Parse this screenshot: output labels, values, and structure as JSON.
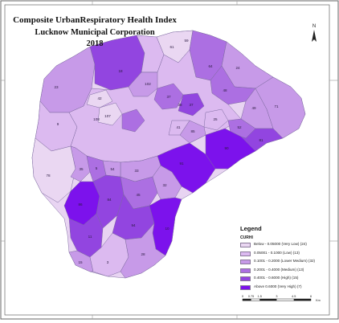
{
  "map": {
    "title_line1": "Composite UrbanRespiratory Health Index",
    "title_line2": "Lucknow Municipal Corporation",
    "title_line3": "2018",
    "north_label": "N"
  },
  "legend": {
    "title": "Legend",
    "subtitle": "CURHI",
    "classes": [
      {
        "label": "Below - 0.05000 (Very Low) (24)",
        "color": "#ead7f2"
      },
      {
        "label": "0.05001 - 0.1000 (Low) (13)",
        "color": "#dcbaf0"
      },
      {
        "label": "0.1001 - 0.2000 (Lower Medium) (32)",
        "color": "#c79ae8"
      },
      {
        "label": "0.2001 - 0.4000 (Medium) (13)",
        "color": "#ac6fe2"
      },
      {
        "label": "0.4001 - 0.6000 (High) (15)",
        "color": "#9245e0"
      },
      {
        "label": "Above 0.6000 (Very High) (7)",
        "color": "#7c12ec"
      }
    ]
  },
  "scale_bar": {
    "ticks": [
      "0",
      "0.75",
      "1.5",
      "3",
      "4.5",
      "6"
    ],
    "unit": "Km"
  },
  "ward_labels": [
    {
      "text": "23",
      "cls": 3
    },
    {
      "text": "59",
      "cls": 2
    },
    {
      "text": "61",
      "cls": 2
    },
    {
      "text": "24",
      "cls": 3
    },
    {
      "text": "18",
      "cls": 5
    },
    {
      "text": "64",
      "cls": 4
    },
    {
      "text": "42",
      "cls": 2
    },
    {
      "text": "9",
      "cls": 2
    },
    {
      "text": "108",
      "cls": 1
    },
    {
      "text": "107",
      "cls": 2
    },
    {
      "text": "102",
      "cls": 3
    },
    {
      "text": "37",
      "cls": 4
    },
    {
      "text": "48",
      "cls": 3
    },
    {
      "text": "71",
      "cls": 3
    },
    {
      "text": "25",
      "cls": 2
    },
    {
      "text": "52",
      "cls": 4
    },
    {
      "text": "85",
      "cls": 3
    },
    {
      "text": "49",
      "cls": 3
    },
    {
      "text": "91",
      "cls": 4
    },
    {
      "text": "90",
      "cls": 5
    },
    {
      "text": "81",
      "cls": 5
    },
    {
      "text": "38",
      "cls": 3
    },
    {
      "text": "41",
      "cls": 2
    },
    {
      "text": "35",
      "cls": 3
    },
    {
      "text": "5",
      "cls": 3
    },
    {
      "text": "33",
      "cls": 3
    },
    {
      "text": "37",
      "cls": 2
    },
    {
      "text": "78",
      "cls": 1
    },
    {
      "text": "45",
      "cls": 3
    },
    {
      "text": "54",
      "cls": 3
    },
    {
      "text": "84",
      "cls": 4
    },
    {
      "text": "86",
      "cls": 5
    },
    {
      "text": "94",
      "cls": 5
    },
    {
      "text": "15",
      "cls": 3
    },
    {
      "text": "3",
      "cls": 3
    },
    {
      "text": "11",
      "cls": 4
    },
    {
      "text": "10",
      "cls": 5
    },
    {
      "text": "32",
      "cls": 3
    },
    {
      "text": "28",
      "cls": 3
    }
  ]
}
